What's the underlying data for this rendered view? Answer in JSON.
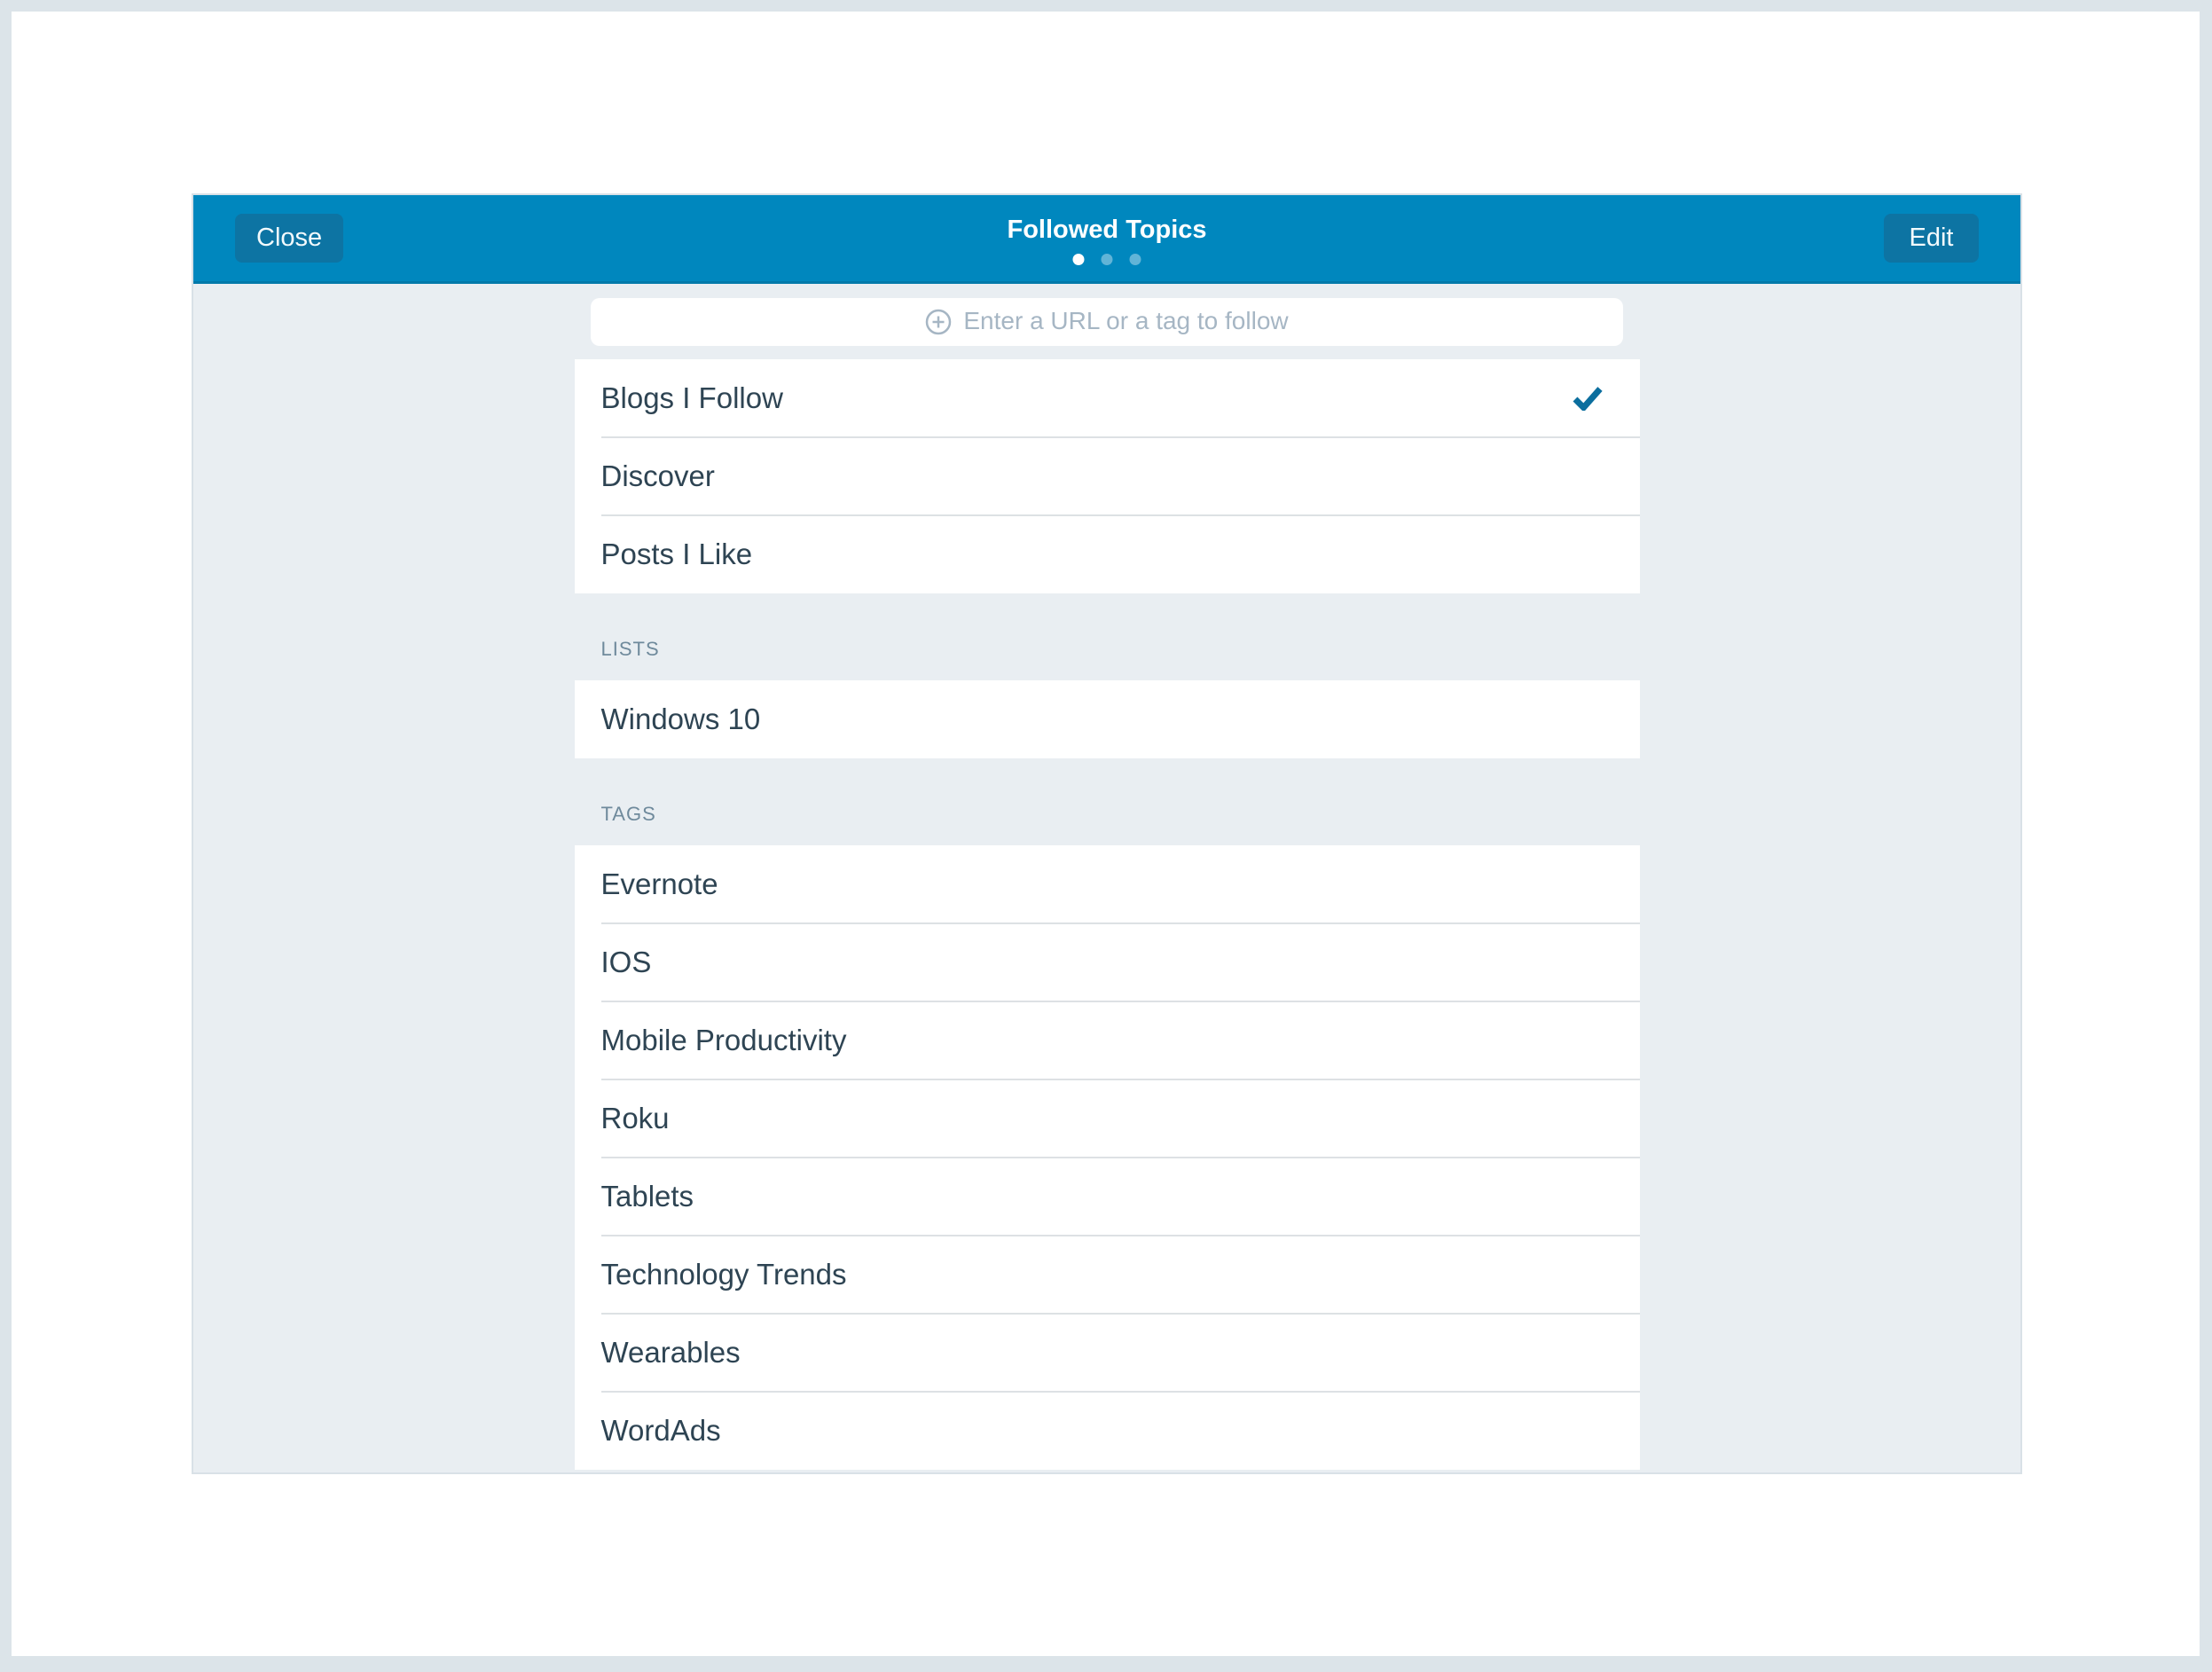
{
  "header": {
    "close_label": "Close",
    "title": "Followed Topics",
    "edit_label": "Edit",
    "page_count": 3,
    "active_page_index": 0
  },
  "search": {
    "placeholder": "Enter a URL or a tag to follow",
    "icon": "plus-circle-icon"
  },
  "nav_items": [
    {
      "label": "Blogs I Follow",
      "selected": true
    },
    {
      "label": "Discover",
      "selected": false
    },
    {
      "label": "Posts I Like",
      "selected": false
    }
  ],
  "sections": [
    {
      "title": "LISTS",
      "items": [
        "Windows 10"
      ]
    },
    {
      "title": "TAGS",
      "items": [
        "Evernote",
        "IOS",
        "Mobile Productivity",
        "Roku",
        "Tablets",
        "Technology Trends",
        "Wearables",
        "WordAds"
      ]
    }
  ],
  "colors": {
    "header_bg": "#0087be",
    "header_button_bg": "#0d74a3",
    "modal_bg": "#e9eef2",
    "outer_frame": "#dce4e9",
    "row_text": "#2e4453",
    "section_label": "#6f8a9c",
    "placeholder": "#a6b6c4",
    "checkmark": "#0b6e9e",
    "divider": "#dde1e4"
  }
}
